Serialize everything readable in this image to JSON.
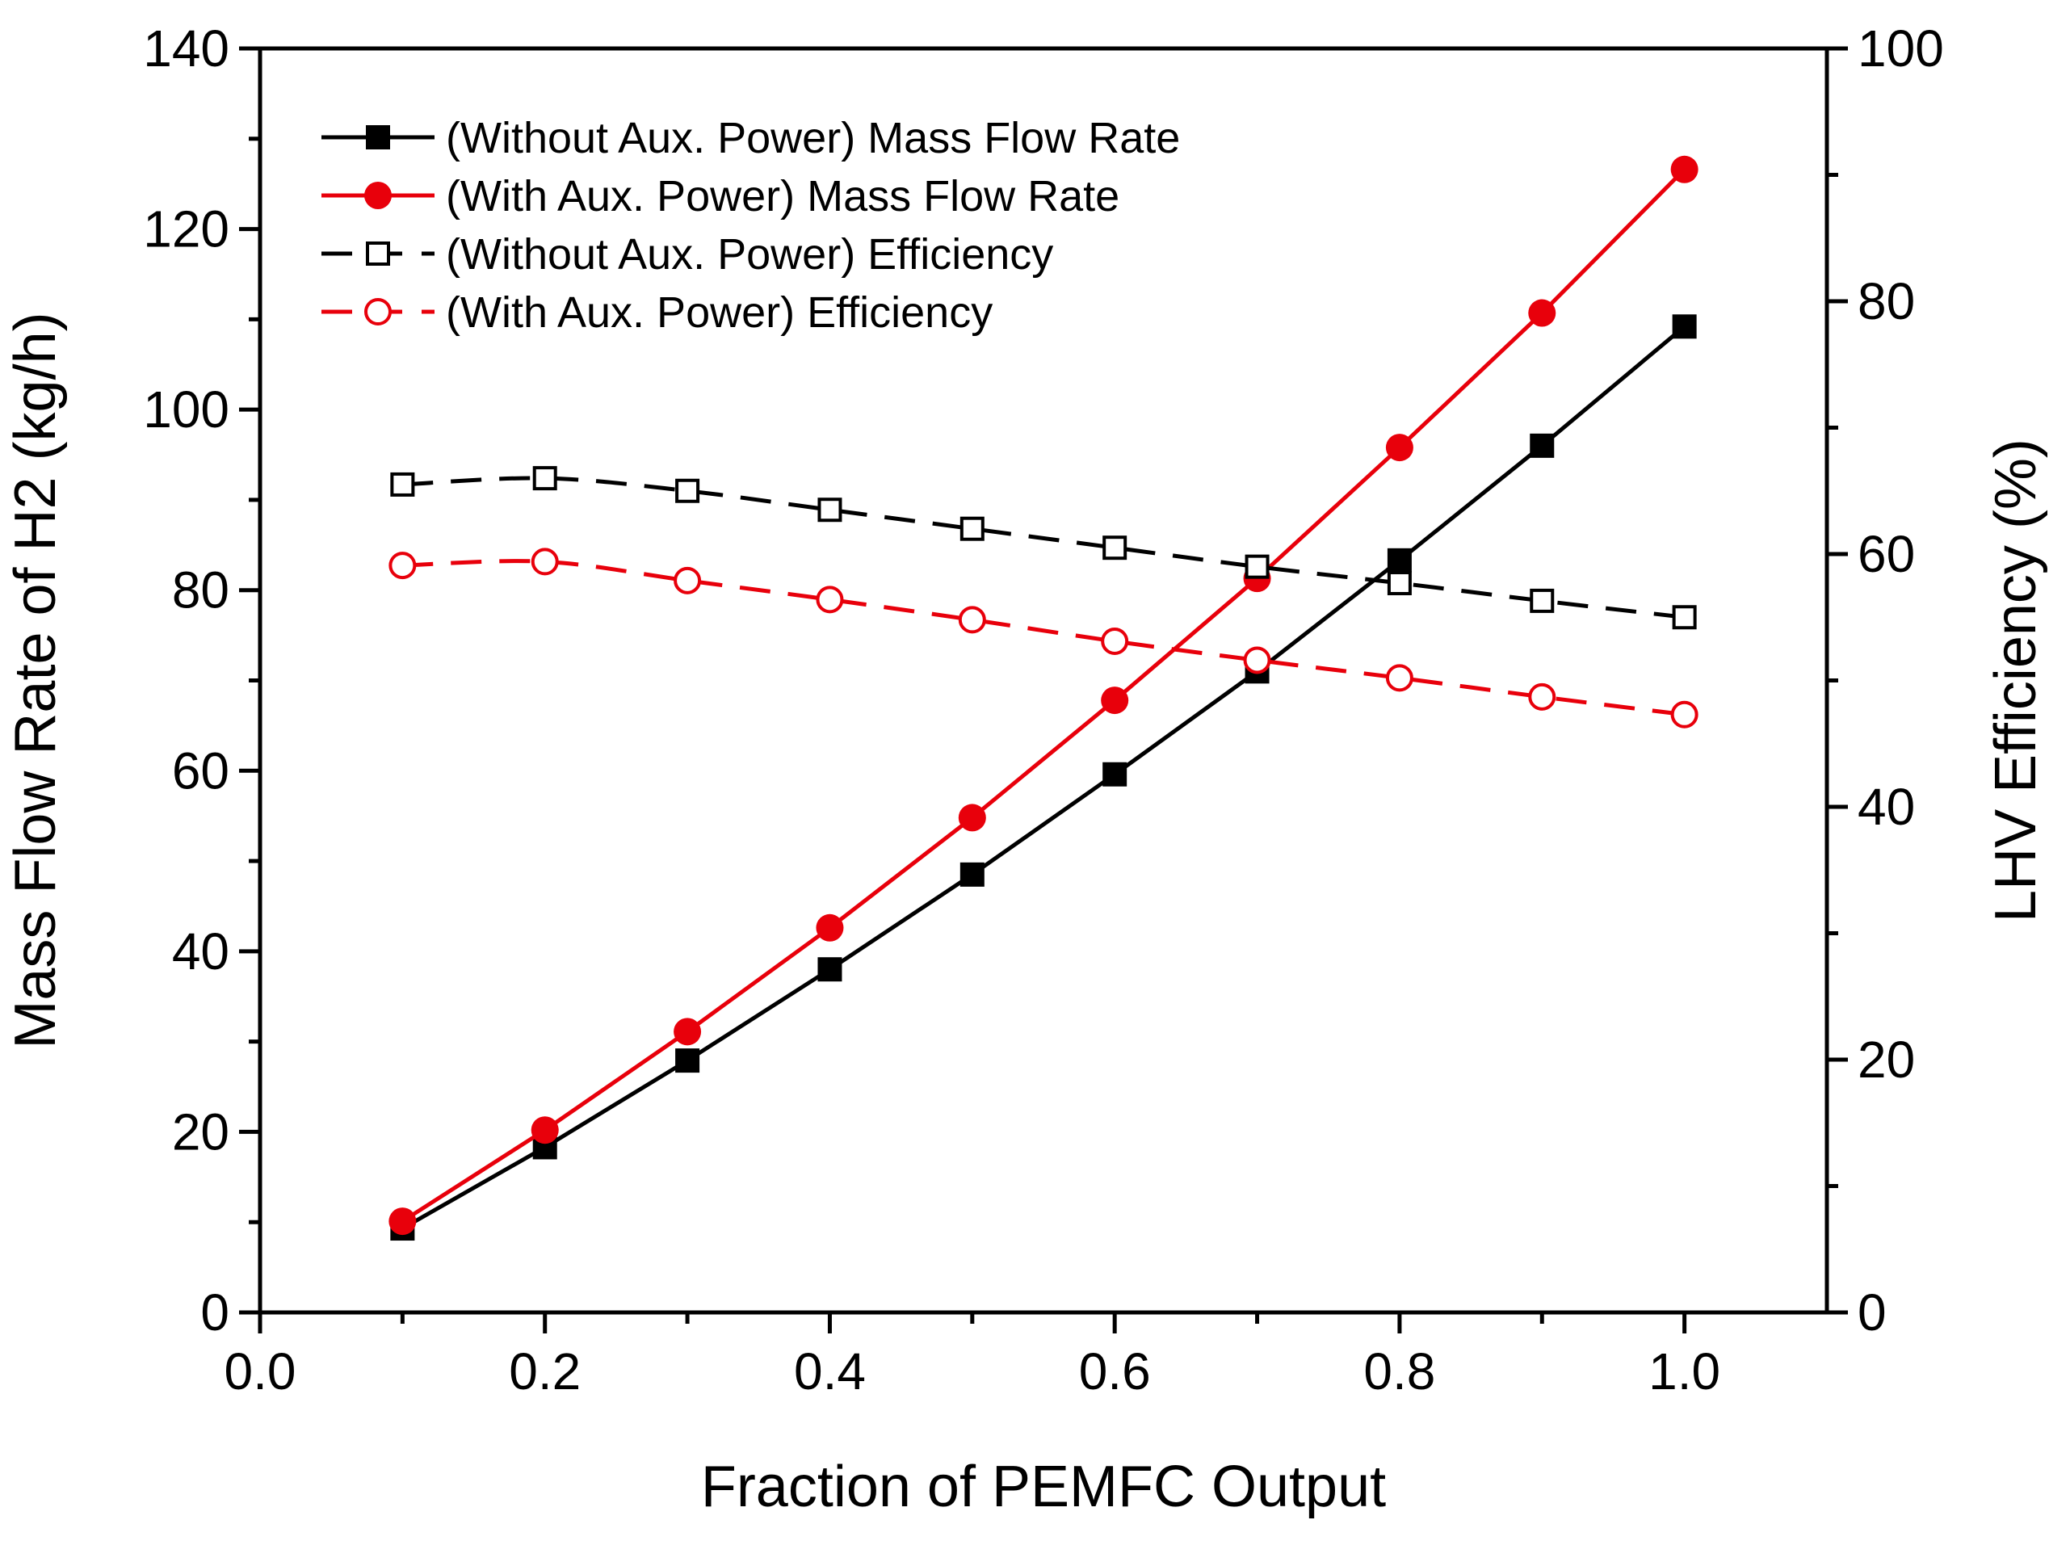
{
  "chart_data": {
    "type": "line",
    "title": "",
    "xlabel": "Fraction of PEMFC Output",
    "ylabel": "Mass Flow Rate of H2 (kg/h)",
    "y2label": "LHV Efficiency (%)",
    "xlim": [
      0.0,
      1.1
    ],
    "ylim": [
      0,
      140
    ],
    "y2lim": [
      0,
      100
    ],
    "x_ticks": [
      "0.0",
      "0.2",
      "0.4",
      "0.6",
      "0.8",
      "1.0"
    ],
    "y_ticks": [
      "0",
      "20",
      "40",
      "60",
      "80",
      "100",
      "120",
      "140"
    ],
    "y2_ticks": [
      "0",
      "20",
      "40",
      "60",
      "80",
      "100"
    ],
    "grid": false,
    "legend_position": "top-left",
    "x": [
      0.1,
      0.2,
      0.3,
      0.4,
      0.5,
      0.6,
      0.7,
      0.8,
      0.9,
      1.0
    ],
    "series": [
      {
        "name": "(Without Aux. Power) Mass Flow Rate",
        "axis": "left",
        "color": "#000000",
        "line_style": "solid",
        "marker": "filled-square",
        "values": [
          9.3,
          18.3,
          27.9,
          38.0,
          48.5,
          59.6,
          71.0,
          83.3,
          96.0,
          109.2
        ]
      },
      {
        "name": "(With Aux. Power) Mass Flow Rate",
        "axis": "left",
        "color": "#e8000b",
        "line_style": "solid",
        "marker": "filled-circle",
        "values": [
          10.1,
          20.2,
          31.1,
          42.6,
          54.8,
          67.8,
          81.3,
          95.8,
          110.7,
          126.6
        ]
      },
      {
        "name": "(Without Aux. Power) Efficiency",
        "axis": "right",
        "color": "#000000",
        "line_style": "dashed",
        "marker": "open-square",
        "values": [
          65.5,
          66.0,
          65.0,
          63.5,
          62.0,
          60.5,
          59.0,
          57.7,
          56.3,
          55.0
        ]
      },
      {
        "name": "(With Aux. Power) Efficiency",
        "axis": "right",
        "color": "#e8000b",
        "line_style": "dashed",
        "marker": "open-circle",
        "values": [
          59.1,
          59.4,
          57.9,
          56.4,
          54.8,
          53.1,
          51.6,
          50.2,
          48.7,
          47.3
        ]
      }
    ]
  }
}
